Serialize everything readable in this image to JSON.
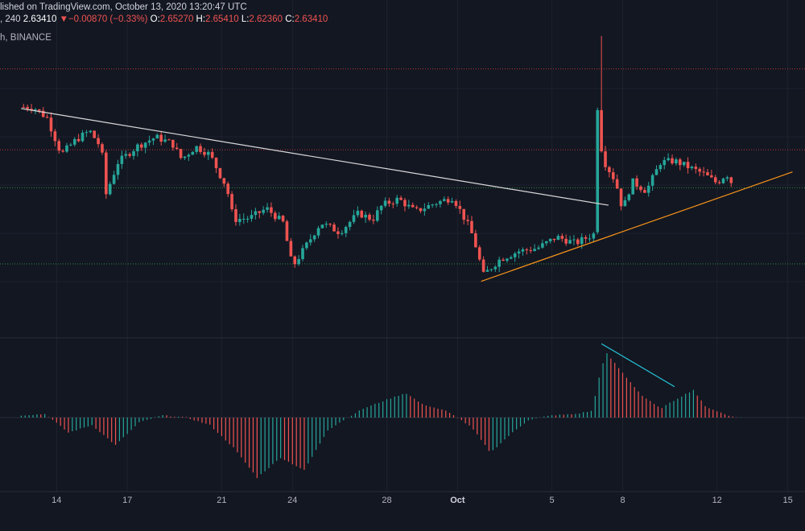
{
  "header": {
    "published": "lished on TradingView.com, October 13, 2020 13:20:47 UTC",
    "interval": ", 240",
    "last": "2.63410",
    "change_arrow": "▼",
    "change": "−0.00870 (−0.33%)",
    "o_label": "O:",
    "o_value": "2.65270",
    "h_label": "H:",
    "h_value": "2.65410",
    "l_label": "L:",
    "l_value": "2.62360",
    "c_label": "C:",
    "c_value": "2.63410",
    "exchange": "h, BINANCE"
  },
  "colors": {
    "background": "#131722",
    "up": "#26a69a",
    "down": "#ef5350",
    "resistance": "#b3363b",
    "support": "#2e8b3c",
    "downtrend": "#d9d9d9",
    "uptrend": "#f7931a",
    "divergence": "#26c6da",
    "grid": "#1e222d"
  },
  "chart_data": {
    "type": "candlestick",
    "x_ticks": [
      {
        "label": "14",
        "day": 14
      },
      {
        "label": "17",
        "day": 17
      },
      {
        "label": "21",
        "day": 21
      },
      {
        "label": "24",
        "day": 24
      },
      {
        "label": "28",
        "day": 28
      },
      {
        "label": "Oct",
        "day": 31
      },
      {
        "label": "5",
        "day": 35
      },
      {
        "label": "8",
        "day": 38
      },
      {
        "label": "12",
        "day": 42
      },
      {
        "label": "15",
        "day": 45
      }
    ],
    "price_range": [
      1.9,
      3.6
    ],
    "close_path": [
      [
        13.0,
        3.23
      ],
      [
        13.6,
        3.16
      ],
      [
        14.2,
        2.93
      ],
      [
        14.8,
        3.02
      ],
      [
        15.4,
        3.08
      ],
      [
        15.9,
        2.97
      ],
      [
        16.1,
        2.68
      ],
      [
        16.6,
        2.88
      ],
      [
        17.4,
        2.98
      ],
      [
        18.2,
        3.04
      ],
      [
        18.9,
        3.0
      ],
      [
        19.3,
        2.9
      ],
      [
        19.9,
        2.98
      ],
      [
        20.5,
        2.93
      ],
      [
        21.0,
        2.78
      ],
      [
        21.2,
        2.73
      ],
      [
        21.5,
        2.52
      ],
      [
        22.2,
        2.53
      ],
      [
        22.9,
        2.59
      ],
      [
        23.6,
        2.5
      ],
      [
        24.0,
        2.22
      ],
      [
        24.6,
        2.36
      ],
      [
        25.2,
        2.5
      ],
      [
        26.0,
        2.44
      ],
      [
        26.8,
        2.56
      ],
      [
        27.4,
        2.52
      ],
      [
        27.8,
        2.61
      ],
      [
        28.5,
        2.65
      ],
      [
        29.2,
        2.57
      ],
      [
        30.0,
        2.62
      ],
      [
        30.8,
        2.66
      ],
      [
        31.5,
        2.47
      ],
      [
        31.7,
        2.39
      ],
      [
        32.1,
        2.17
      ],
      [
        32.8,
        2.27
      ],
      [
        33.6,
        2.32
      ],
      [
        34.4,
        2.34
      ],
      [
        35.2,
        2.41
      ],
      [
        36.0,
        2.37
      ],
      [
        36.8,
        2.43
      ],
      [
        37.0,
        3.21
      ],
      [
        37.2,
        2.89
      ],
      [
        37.7,
        2.76
      ],
      [
        38.0,
        2.58
      ],
      [
        38.4,
        2.76
      ],
      [
        39.0,
        2.7
      ],
      [
        39.6,
        2.88
      ],
      [
        40.2,
        2.89
      ],
      [
        40.8,
        2.85
      ],
      [
        41.4,
        2.81
      ],
      [
        42.0,
        2.75
      ],
      [
        42.4,
        2.81
      ],
      [
        42.7,
        2.73
      ]
    ],
    "resistance_levels": [
      3.47,
      2.96
    ],
    "support_levels": [
      2.72,
      2.24
    ],
    "downtrend_line": [
      [
        12.5,
        3.22
      ],
      [
        37.4,
        2.61
      ]
    ],
    "uptrend_line": [
      [
        32.0,
        2.13
      ],
      [
        45.2,
        2.82
      ]
    ],
    "histogram_path": [
      [
        12.5,
        0.05
      ],
      [
        13.5,
        0.08
      ],
      [
        14.5,
        -0.3
      ],
      [
        15.5,
        -0.15
      ],
      [
        16.5,
        -0.55
      ],
      [
        17.5,
        -0.1
      ],
      [
        18.5,
        0.05
      ],
      [
        19.5,
        0.0
      ],
      [
        20.5,
        -0.15
      ],
      [
        21.5,
        -0.6
      ],
      [
        22.5,
        -1.2
      ],
      [
        23.5,
        -0.8
      ],
      [
        24.5,
        -1.05
      ],
      [
        25.5,
        -0.25
      ],
      [
        26.5,
        0.05
      ],
      [
        27.0,
        0.2
      ],
      [
        28.0,
        0.4
      ],
      [
        28.8,
        0.55
      ],
      [
        29.5,
        0.3
      ],
      [
        30.5,
        0.15
      ],
      [
        31.0,
        0.0
      ],
      [
        31.6,
        -0.2
      ],
      [
        32.4,
        -0.7
      ],
      [
        33.2,
        -0.35
      ],
      [
        34.0,
        -0.05
      ],
      [
        35.0,
        0.05
      ],
      [
        36.0,
        0.08
      ],
      [
        36.7,
        0.15
      ],
      [
        37.0,
        0.9
      ],
      [
        37.3,
        1.45
      ],
      [
        38.0,
        1.0
      ],
      [
        38.8,
        0.5
      ],
      [
        39.6,
        0.2
      ],
      [
        40.4,
        0.45
      ],
      [
        41.0,
        0.62
      ],
      [
        41.5,
        0.25
      ],
      [
        42.5,
        0.04
      ],
      [
        43.0,
        0.0
      ]
    ],
    "histogram_range": [
      -1.3,
      1.6
    ],
    "divergence_line": [
      [
        37.1,
        1.65
      ],
      [
        40.2,
        0.69
      ]
    ]
  }
}
